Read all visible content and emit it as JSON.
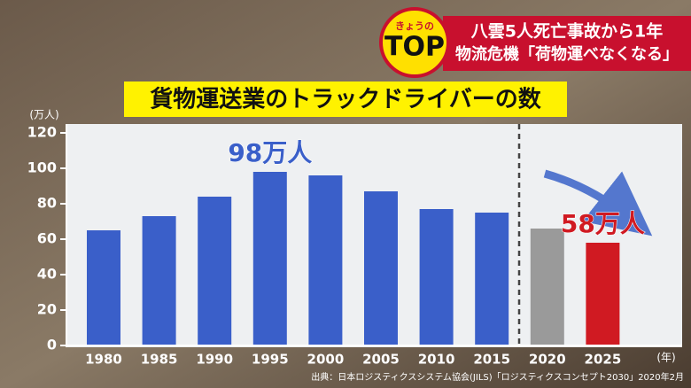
{
  "header": {
    "badge_small": "きょうの",
    "badge_big": "TOP",
    "headline": "八雲5人死亡事故から1年",
    "subheadline": "物流危機「荷物運べなくなる」"
  },
  "chart_data": {
    "type": "bar",
    "title": "貨物運送業のトラックドライバーの数",
    "y_unit": "(万人)",
    "x_unit": "(年)",
    "categories": [
      "1980",
      "1985",
      "1990",
      "1995",
      "2000",
      "2005",
      "2010",
      "2015",
      "2020",
      "2025"
    ],
    "values": [
      65,
      73,
      84,
      98,
      96,
      87,
      77,
      75,
      66,
      58
    ],
    "value_labels": [
      null,
      null,
      null,
      "98万人",
      null,
      null,
      null,
      null,
      null,
      "58万人"
    ],
    "colors": [
      "#3a5fc9",
      "#3a5fc9",
      "#3a5fc9",
      "#3a5fc9",
      "#3a5fc9",
      "#3a5fc9",
      "#3a5fc9",
      "#3a5fc9",
      "#9a9a9a",
      "#d01a22"
    ],
    "ylim": [
      0,
      120
    ],
    "yticks": [
      0,
      20,
      40,
      60,
      80,
      100,
      120
    ],
    "source": "出典：日本ロジスティクスシステム協会(JILS)「ロジスティクスコンセプト2030」2020年2月"
  }
}
